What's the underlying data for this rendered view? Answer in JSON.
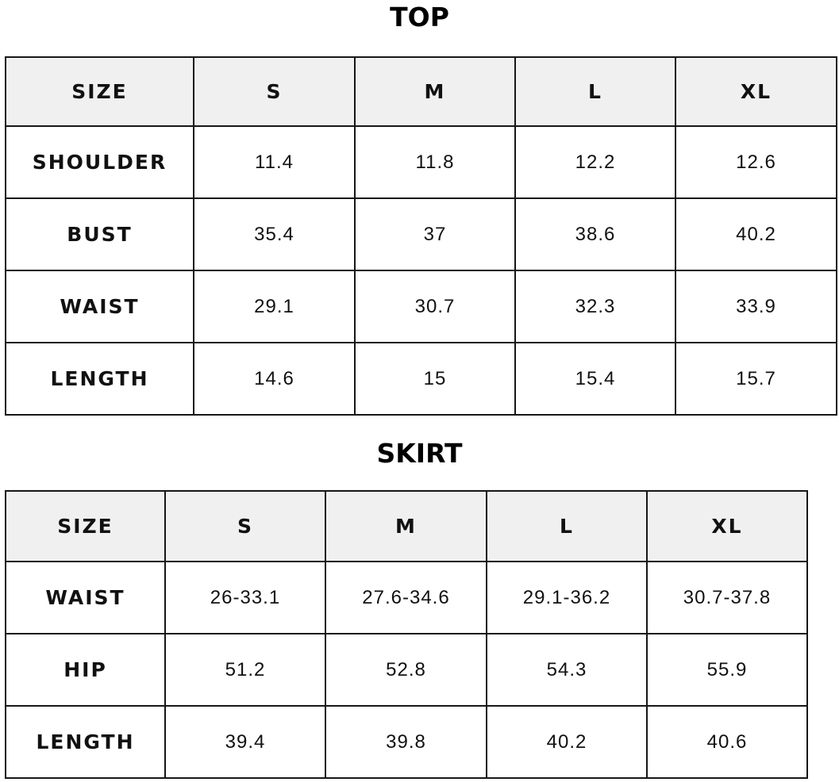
{
  "top": {
    "title": "TOP",
    "headers": [
      "SIZE",
      "S",
      "M",
      "L",
      "XL"
    ],
    "rows": [
      {
        "label": "SHOULDER",
        "values": [
          "11.4",
          "11.8",
          "12.2",
          "12.6"
        ]
      },
      {
        "label": "BUST",
        "values": [
          "35.4",
          "37",
          "38.6",
          "40.2"
        ]
      },
      {
        "label": "WAIST",
        "values": [
          "29.1",
          "30.7",
          "32.3",
          "33.9"
        ]
      },
      {
        "label": "LENGTH",
        "values": [
          "14.6",
          "15",
          "15.4",
          "15.7"
        ]
      }
    ]
  },
  "skirt": {
    "title": "SKIRT",
    "headers": [
      "SIZE",
      "S",
      "M",
      "L",
      "XL"
    ],
    "rows": [
      {
        "label": "WAIST",
        "values": [
          "26-33.1",
          "27.6-34.6",
          "29.1-36.2",
          "30.7-37.8"
        ]
      },
      {
        "label": "HIP",
        "values": [
          "51.2",
          "52.8",
          "54.3",
          "55.9"
        ]
      },
      {
        "label": "LENGTH",
        "values": [
          "39.4",
          "39.8",
          "40.2",
          "40.6"
        ]
      }
    ]
  },
  "colors": {
    "header_bg": "#f0f0f0",
    "border": "#161616",
    "text": "#111111"
  }
}
